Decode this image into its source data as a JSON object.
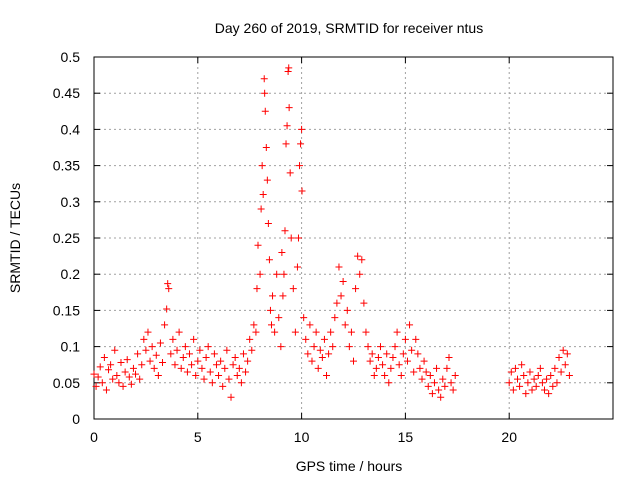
{
  "chart_data": {
    "type": "scatter",
    "title": "Day 260 of 2019, SRMTID for receiver ntus",
    "xlabel": "GPS time / hours",
    "ylabel": "SRMTID / TECUs",
    "xlim": [
      0,
      25
    ],
    "ylim": [
      0,
      0.5
    ],
    "x_ticks": [
      0,
      5,
      10,
      15,
      20
    ],
    "x_tick_labels": [
      "0",
      "5",
      "10",
      "15",
      "20"
    ],
    "y_ticks": [
      0,
      0.05,
      0.1,
      0.15,
      0.2,
      0.25,
      0.3,
      0.35,
      0.4,
      0.45,
      0.5
    ],
    "y_tick_labels": [
      "0",
      "0.05",
      "0.1",
      "0.15",
      "0.2",
      "0.25",
      "0.3",
      "0.35",
      "0.4",
      "0.45",
      "0.5"
    ],
    "grid": true,
    "marker": "+",
    "color": "#ff0000",
    "series": [
      {
        "name": "SRMTID",
        "points": [
          [
            0.0,
            0.062
          ],
          [
            0.1,
            0.045
          ],
          [
            0.2,
            0.058
          ],
          [
            0.3,
            0.072
          ],
          [
            0.4,
            0.05
          ],
          [
            0.5,
            0.085
          ],
          [
            0.6,
            0.04
          ],
          [
            0.7,
            0.068
          ],
          [
            0.8,
            0.075
          ],
          [
            0.9,
            0.055
          ],
          [
            1.0,
            0.095
          ],
          [
            1.1,
            0.06
          ],
          [
            1.2,
            0.05
          ],
          [
            1.3,
            0.078
          ],
          [
            1.4,
            0.045
          ],
          [
            1.5,
            0.065
          ],
          [
            1.6,
            0.082
          ],
          [
            1.7,
            0.058
          ],
          [
            1.8,
            0.048
          ],
          [
            1.9,
            0.07
          ],
          [
            2.0,
            0.062
          ],
          [
            2.1,
            0.09
          ],
          [
            2.2,
            0.055
          ],
          [
            2.3,
            0.075
          ],
          [
            2.4,
            0.11
          ],
          [
            2.5,
            0.095
          ],
          [
            2.6,
            0.12
          ],
          [
            2.7,
            0.08
          ],
          [
            2.8,
            0.1
          ],
          [
            2.9,
            0.07
          ],
          [
            3.0,
            0.088
          ],
          [
            3.1,
            0.06
          ],
          [
            3.2,
            0.105
          ],
          [
            3.3,
            0.078
          ],
          [
            3.4,
            0.13
          ],
          [
            3.5,
            0.152
          ],
          [
            3.55,
            0.187
          ],
          [
            3.6,
            0.18
          ],
          [
            3.7,
            0.09
          ],
          [
            3.8,
            0.11
          ],
          [
            3.9,
            0.075
          ],
          [
            4.0,
            0.095
          ],
          [
            4.1,
            0.12
          ],
          [
            4.2,
            0.07
          ],
          [
            4.3,
            0.085
          ],
          [
            4.4,
            0.1
          ],
          [
            4.5,
            0.065
          ],
          [
            4.6,
            0.09
          ],
          [
            4.7,
            0.075
          ],
          [
            4.8,
            0.11
          ],
          [
            4.9,
            0.06
          ],
          [
            5.0,
            0.08
          ],
          [
            5.1,
            0.095
          ],
          [
            5.2,
            0.07
          ],
          [
            5.3,
            0.055
          ],
          [
            5.4,
            0.085
          ],
          [
            5.5,
            0.1
          ],
          [
            5.6,
            0.065
          ],
          [
            5.7,
            0.05
          ],
          [
            5.8,
            0.09
          ],
          [
            5.9,
            0.075
          ],
          [
            6.0,
            0.06
          ],
          [
            6.1,
            0.08
          ],
          [
            6.2,
            0.045
          ],
          [
            6.3,
            0.07
          ],
          [
            6.4,
            0.095
          ],
          [
            6.5,
            0.055
          ],
          [
            6.6,
            0.03
          ],
          [
            6.7,
            0.075
          ],
          [
            6.8,
            0.085
          ],
          [
            6.9,
            0.06
          ],
          [
            7.0,
            0.07
          ],
          [
            7.1,
            0.05
          ],
          [
            7.2,
            0.09
          ],
          [
            7.3,
            0.065
          ],
          [
            7.4,
            0.08
          ],
          [
            7.5,
            0.11
          ],
          [
            7.6,
            0.095
          ],
          [
            7.7,
            0.13
          ],
          [
            7.8,
            0.12
          ],
          [
            7.85,
            0.18
          ],
          [
            7.9,
            0.24
          ],
          [
            8.0,
            0.2
          ],
          [
            8.05,
            0.29
          ],
          [
            8.1,
            0.35
          ],
          [
            8.15,
            0.31
          ],
          [
            8.2,
            0.47
          ],
          [
            8.22,
            0.45
          ],
          [
            8.25,
            0.425
          ],
          [
            8.3,
            0.375
          ],
          [
            8.35,
            0.33
          ],
          [
            8.4,
            0.27
          ],
          [
            8.45,
            0.22
          ],
          [
            8.5,
            0.15
          ],
          [
            8.55,
            0.13
          ],
          [
            8.6,
            0.17
          ],
          [
            8.7,
            0.12
          ],
          [
            8.8,
            0.2
          ],
          [
            8.9,
            0.14
          ],
          [
            9.0,
            0.1
          ],
          [
            9.05,
            0.23
          ],
          [
            9.1,
            0.17
          ],
          [
            9.15,
            0.2
          ],
          [
            9.2,
            0.26
          ],
          [
            9.25,
            0.38
          ],
          [
            9.3,
            0.405
          ],
          [
            9.35,
            0.48
          ],
          [
            9.38,
            0.485
          ],
          [
            9.4,
            0.43
          ],
          [
            9.45,
            0.34
          ],
          [
            9.5,
            0.25
          ],
          [
            9.6,
            0.18
          ],
          [
            9.7,
            0.12
          ],
          [
            9.8,
            0.21
          ],
          [
            9.85,
            0.25
          ],
          [
            9.9,
            0.35
          ],
          [
            9.95,
            0.38
          ],
          [
            10.0,
            0.4
          ],
          [
            10.02,
            0.315
          ],
          [
            10.1,
            0.14
          ],
          [
            10.2,
            0.11
          ],
          [
            10.3,
            0.09
          ],
          [
            10.4,
            0.13
          ],
          [
            10.5,
            0.08
          ],
          [
            10.6,
            0.1
          ],
          [
            10.7,
            0.12
          ],
          [
            10.8,
            0.07
          ],
          [
            10.9,
            0.095
          ],
          [
            11.0,
            0.085
          ],
          [
            11.1,
            0.11
          ],
          [
            11.2,
            0.06
          ],
          [
            11.3,
            0.09
          ],
          [
            11.4,
            0.12
          ],
          [
            11.5,
            0.1
          ],
          [
            11.6,
            0.14
          ],
          [
            11.7,
            0.16
          ],
          [
            11.8,
            0.21
          ],
          [
            11.9,
            0.17
          ],
          [
            12.0,
            0.19
          ],
          [
            12.1,
            0.13
          ],
          [
            12.2,
            0.15
          ],
          [
            12.3,
            0.1
          ],
          [
            12.4,
            0.12
          ],
          [
            12.5,
            0.08
          ],
          [
            12.6,
            0.18
          ],
          [
            12.7,
            0.225
          ],
          [
            12.8,
            0.2
          ],
          [
            12.9,
            0.22
          ],
          [
            13.0,
            0.16
          ],
          [
            13.1,
            0.12
          ],
          [
            13.2,
            0.1
          ],
          [
            13.3,
            0.08
          ],
          [
            13.4,
            0.09
          ],
          [
            13.5,
            0.06
          ],
          [
            13.6,
            0.07
          ],
          [
            13.7,
            0.085
          ],
          [
            13.8,
            0.1
          ],
          [
            13.9,
            0.075
          ],
          [
            14.0,
            0.06
          ],
          [
            14.1,
            0.09
          ],
          [
            14.2,
            0.05
          ],
          [
            14.3,
            0.07
          ],
          [
            14.4,
            0.085
          ],
          [
            14.5,
            0.1
          ],
          [
            14.6,
            0.12
          ],
          [
            14.7,
            0.075
          ],
          [
            14.8,
            0.06
          ],
          [
            14.9,
            0.09
          ],
          [
            15.0,
            0.11
          ],
          [
            15.1,
            0.08
          ],
          [
            15.2,
            0.13
          ],
          [
            15.3,
            0.095
          ],
          [
            15.4,
            0.065
          ],
          [
            15.5,
            0.11
          ],
          [
            15.6,
            0.09
          ],
          [
            15.7,
            0.07
          ],
          [
            15.8,
            0.055
          ],
          [
            15.9,
            0.08
          ],
          [
            16.0,
            0.065
          ],
          [
            16.1,
            0.045
          ],
          [
            16.2,
            0.06
          ],
          [
            16.3,
            0.035
          ],
          [
            16.4,
            0.05
          ],
          [
            16.5,
            0.07
          ],
          [
            16.6,
            0.04
          ],
          [
            16.7,
            0.03
          ],
          [
            16.8,
            0.055
          ],
          [
            16.9,
            0.045
          ],
          [
            17.0,
            0.07
          ],
          [
            17.1,
            0.085
          ],
          [
            17.2,
            0.05
          ],
          [
            17.3,
            0.04
          ],
          [
            17.4,
            0.06
          ],
          [
            20.0,
            0.05
          ],
          [
            20.1,
            0.065
          ],
          [
            20.2,
            0.04
          ],
          [
            20.3,
            0.07
          ],
          [
            20.4,
            0.055
          ],
          [
            20.5,
            0.045
          ],
          [
            20.6,
            0.075
          ],
          [
            20.7,
            0.06
          ],
          [
            20.8,
            0.035
          ],
          [
            20.9,
            0.05
          ],
          [
            21.0,
            0.065
          ],
          [
            21.1,
            0.04
          ],
          [
            21.2,
            0.055
          ],
          [
            21.3,
            0.045
          ],
          [
            21.4,
            0.06
          ],
          [
            21.5,
            0.07
          ],
          [
            21.6,
            0.05
          ],
          [
            21.7,
            0.04
          ],
          [
            21.8,
            0.055
          ],
          [
            21.9,
            0.035
          ],
          [
            22.0,
            0.06
          ],
          [
            22.1,
            0.045
          ],
          [
            22.2,
            0.07
          ],
          [
            22.3,
            0.05
          ],
          [
            22.4,
            0.085
          ],
          [
            22.5,
            0.065
          ],
          [
            22.6,
            0.095
          ],
          [
            22.7,
            0.075
          ],
          [
            22.8,
            0.09
          ],
          [
            22.9,
            0.06
          ]
        ]
      }
    ]
  }
}
